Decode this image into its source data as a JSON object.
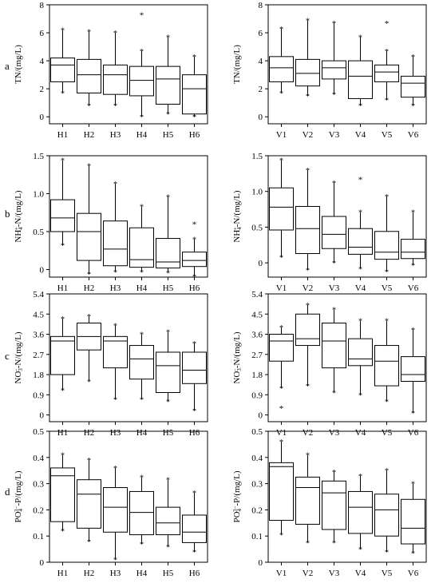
{
  "row_labels": [
    "a",
    "b",
    "c",
    "d"
  ],
  "chart_data": [
    {
      "type": "box",
      "row": 0,
      "col": 0,
      "ylabel": "TN/(mg/L)",
      "ylim": [
        -0.5,
        8
      ],
      "yticks": [
        0,
        2,
        4,
        6,
        8
      ],
      "ytick_labels": [
        "0",
        "2",
        "4",
        "6",
        "8"
      ],
      "categories": [
        "H1",
        "H2",
        "H3",
        "H4",
        "H5",
        "H6"
      ],
      "boxes": [
        {
          "min": 1.7,
          "q1": 2.5,
          "median": 3.7,
          "q3": 4.2,
          "max": 6.2,
          "outliers": []
        },
        {
          "min": 0.8,
          "q1": 1.7,
          "median": 3.0,
          "q3": 4.1,
          "max": 6.1,
          "outliers": []
        },
        {
          "min": 0.8,
          "q1": 1.6,
          "median": 3.0,
          "q3": 3.7,
          "max": 6.0,
          "outliers": []
        },
        {
          "min": 0.0,
          "q1": 1.5,
          "median": 2.6,
          "q3": 3.6,
          "max": 4.7,
          "outliers": [
            7.3
          ]
        },
        {
          "min": 0.2,
          "q1": 0.9,
          "median": 2.7,
          "q3": 3.6,
          "max": 5.7,
          "outliers": []
        },
        {
          "min": 0.0,
          "q1": 0.2,
          "median": 2.0,
          "q3": 3.0,
          "max": 4.3,
          "outliers": []
        }
      ]
    },
    {
      "type": "box",
      "row": 0,
      "col": 1,
      "ylabel": "TN/(mg/L)",
      "ylim": [
        -0.5,
        8
      ],
      "yticks": [
        0,
        2,
        4,
        6,
        8
      ],
      "ytick_labels": [
        "0",
        "2",
        "4",
        "6",
        "8"
      ],
      "categories": [
        "V1",
        "V2",
        "V3",
        "V4",
        "V5",
        "V6"
      ],
      "boxes": [
        {
          "min": 1.7,
          "q1": 2.5,
          "median": 3.5,
          "q3": 4.3,
          "max": 6.3,
          "outliers": []
        },
        {
          "min": 1.5,
          "q1": 2.2,
          "median": 3.1,
          "q3": 4.1,
          "max": 6.9,
          "outliers": []
        },
        {
          "min": 1.6,
          "q1": 2.7,
          "median": 3.5,
          "q3": 4.0,
          "max": 6.7,
          "outliers": []
        },
        {
          "min": 0.8,
          "q1": 1.3,
          "median": 2.9,
          "q3": 4.0,
          "max": 5.7,
          "outliers": []
        },
        {
          "min": 1.2,
          "q1": 2.5,
          "median": 3.2,
          "q3": 3.7,
          "max": 4.7,
          "outliers": [
            6.7
          ]
        },
        {
          "min": 0.8,
          "q1": 1.4,
          "median": 2.4,
          "q3": 2.9,
          "max": 4.3,
          "outliers": []
        }
      ]
    },
    {
      "type": "box",
      "row": 1,
      "col": 0,
      "ylabel": "NH4+-N/(mg/L)",
      "ylim": [
        -0.1,
        1.5
      ],
      "yticks": [
        0,
        0.5,
        1.0,
        1.5
      ],
      "ytick_labels": [
        "0",
        "0.5",
        "1.0",
        "1.5"
      ],
      "categories": [
        "H1",
        "H2",
        "H3",
        "H4",
        "H5",
        "H6"
      ],
      "boxes": [
        {
          "min": 0.32,
          "q1": 0.5,
          "median": 0.68,
          "q3": 0.92,
          "max": 1.44,
          "outliers": []
        },
        {
          "min": -0.06,
          "q1": 0.12,
          "median": 0.5,
          "q3": 0.74,
          "max": 1.37,
          "outliers": []
        },
        {
          "min": -0.03,
          "q1": 0.05,
          "median": 0.27,
          "q3": 0.64,
          "max": 1.13,
          "outliers": []
        },
        {
          "min": -0.03,
          "q1": 0.03,
          "median": 0.13,
          "q3": 0.55,
          "max": 0.83,
          "outliers": []
        },
        {
          "min": -0.04,
          "q1": 0.02,
          "median": 0.1,
          "q3": 0.41,
          "max": 0.96,
          "outliers": []
        },
        {
          "min": -0.09,
          "q1": 0.04,
          "median": 0.12,
          "q3": 0.23,
          "max": 0.4,
          "outliers": [
            0.6
          ]
        }
      ]
    },
    {
      "type": "box",
      "row": 1,
      "col": 1,
      "ylabel": "NH4+-N/(mg/L)",
      "ylim": [
        -0.2,
        1.5
      ],
      "yticks": [
        0,
        0.5,
        1.0,
        1.5
      ],
      "ytick_labels": [
        "0",
        "0.5",
        "1.0",
        "1.5"
      ],
      "categories": [
        "V1",
        "V2",
        "V3",
        "V4",
        "V5",
        "V6"
      ],
      "boxes": [
        {
          "min": 0.08,
          "q1": 0.46,
          "median": 0.78,
          "q3": 1.05,
          "max": 1.44,
          "outliers": []
        },
        {
          "min": -0.1,
          "q1": 0.13,
          "median": 0.48,
          "q3": 0.79,
          "max": 1.3,
          "outliers": []
        },
        {
          "min": 0.0,
          "q1": 0.2,
          "median": 0.4,
          "q3": 0.65,
          "max": 1.12,
          "outliers": []
        },
        {
          "min": -0.08,
          "q1": 0.12,
          "median": 0.22,
          "q3": 0.48,
          "max": 0.71,
          "outliers": [
            1.17
          ]
        },
        {
          "min": -0.12,
          "q1": 0.05,
          "median": 0.15,
          "q3": 0.44,
          "max": 0.93,
          "outliers": []
        },
        {
          "min": -0.03,
          "q1": 0.06,
          "median": 0.15,
          "q3": 0.33,
          "max": 0.71,
          "outliers": []
        }
      ]
    },
    {
      "type": "box",
      "row": 2,
      "col": 0,
      "ylabel": "NO3−-N/(mg/L)",
      "ylim": [
        -0.3,
        5.4
      ],
      "yticks": [
        0,
        0.9,
        1.8,
        2.7,
        3.6,
        4.5,
        5.4
      ],
      "ytick_labels": [
        "0",
        "0.9",
        "1.8",
        "2.7",
        "3.6",
        "4.5",
        "5.4"
      ],
      "categories": [
        "H1",
        "H2",
        "H3",
        "H4",
        "H5",
        "H6"
      ],
      "boxes": [
        {
          "min": 1.1,
          "q1": 1.8,
          "median": 3.3,
          "q3": 3.5,
          "max": 4.3,
          "outliers": []
        },
        {
          "min": 1.5,
          "q1": 2.9,
          "median": 3.5,
          "q3": 4.1,
          "max": 4.4,
          "outliers": []
        },
        {
          "min": 0.7,
          "q1": 2.1,
          "median": 3.3,
          "q3": 3.5,
          "max": 4.0,
          "outliers": []
        },
        {
          "min": 0.7,
          "q1": 1.6,
          "median": 2.5,
          "q3": 3.1,
          "max": 3.6,
          "outliers": []
        },
        {
          "min": 0.6,
          "q1": 1.0,
          "median": 2.2,
          "q3": 2.8,
          "max": 3.7,
          "outliers": []
        },
        {
          "min": 0.2,
          "q1": 1.4,
          "median": 2.0,
          "q3": 2.8,
          "max": 3.2,
          "outliers": []
        }
      ]
    },
    {
      "type": "box",
      "row": 2,
      "col": 1,
      "ylabel": "NO3−-N/(mg/L)",
      "ylim": [
        -0.3,
        5.4
      ],
      "yticks": [
        0,
        0.9,
        1.8,
        2.7,
        3.6,
        4.5,
        5.4
      ],
      "ytick_labels": [
        "0",
        "0.9",
        "1.8",
        "2.7",
        "3.6",
        "4.5",
        "5.4"
      ],
      "categories": [
        "V1",
        "V2",
        "V3",
        "V4",
        "V5",
        "V6"
      ],
      "boxes": [
        {
          "min": 1.2,
          "q1": 2.4,
          "median": 3.3,
          "q3": 3.6,
          "max": 3.9,
          "outliers": [
            0.3
          ]
        },
        {
          "min": 1.3,
          "q1": 3.1,
          "median": 3.4,
          "q3": 4.5,
          "max": 4.9,
          "outliers": []
        },
        {
          "min": 1.0,
          "q1": 2.1,
          "median": 3.3,
          "q3": 4.1,
          "max": 4.7,
          "outliers": []
        },
        {
          "min": 0.9,
          "q1": 2.2,
          "median": 2.5,
          "q3": 3.4,
          "max": 4.2,
          "outliers": []
        },
        {
          "min": 0.6,
          "q1": 1.3,
          "median": 2.4,
          "q3": 3.1,
          "max": 4.2,
          "outliers": []
        },
        {
          "min": 0.1,
          "q1": 1.5,
          "median": 1.8,
          "q3": 2.6,
          "max": 3.8,
          "outliers": []
        }
      ]
    },
    {
      "type": "box",
      "row": 3,
      "col": 0,
      "ylabel": "PO43−-P/(mg/L)",
      "ylim": [
        0,
        0.5
      ],
      "yticks": [
        0,
        0.1,
        0.2,
        0.3,
        0.4,
        0.5
      ],
      "ytick_labels": [
        "0",
        "0.1",
        "0.2",
        "0.3",
        "0.4",
        "0.5"
      ],
      "categories": [
        "H1",
        "H2",
        "H3",
        "H4",
        "H5",
        "H6"
      ],
      "boxes": [
        {
          "min": 0.12,
          "q1": 0.155,
          "median": 0.33,
          "q3": 0.36,
          "max": 0.41,
          "outliers": []
        },
        {
          "min": 0.08,
          "q1": 0.13,
          "median": 0.26,
          "q3": 0.315,
          "max": 0.39,
          "outliers": []
        },
        {
          "min": 0.01,
          "q1": 0.115,
          "median": 0.21,
          "q3": 0.285,
          "max": 0.36,
          "outliers": []
        },
        {
          "min": 0.07,
          "q1": 0.105,
          "median": 0.19,
          "q3": 0.27,
          "max": 0.325,
          "outliers": []
        },
        {
          "min": 0.06,
          "q1": 0.105,
          "median": 0.15,
          "q3": 0.21,
          "max": 0.315,
          "outliers": []
        },
        {
          "min": 0.04,
          "q1": 0.075,
          "median": 0.115,
          "q3": 0.18,
          "max": 0.265,
          "outliers": []
        }
      ]
    },
    {
      "type": "box",
      "row": 3,
      "col": 1,
      "ylabel": "PO43−-P/(mg/L)",
      "ylim": [
        0,
        0.5
      ],
      "yticks": [
        0,
        0.1,
        0.2,
        0.3,
        0.4,
        0.5
      ],
      "ytick_labels": [
        "0",
        "0.1",
        "0.2",
        "0.3",
        "0.4",
        "0.5"
      ],
      "categories": [
        "V1",
        "V2",
        "V3",
        "V4",
        "V5",
        "V6"
      ],
      "boxes": [
        {
          "min": 0.105,
          "q1": 0.16,
          "median": 0.365,
          "q3": 0.38,
          "max": 0.46,
          "outliers": []
        },
        {
          "min": 0.075,
          "q1": 0.145,
          "median": 0.285,
          "q3": 0.325,
          "max": 0.41,
          "outliers": []
        },
        {
          "min": 0.075,
          "q1": 0.125,
          "median": 0.265,
          "q3": 0.31,
          "max": 0.345,
          "outliers": []
        },
        {
          "min": 0.05,
          "q1": 0.11,
          "median": 0.21,
          "q3": 0.27,
          "max": 0.33,
          "outliers": []
        },
        {
          "min": 0.04,
          "q1": 0.1,
          "median": 0.2,
          "q3": 0.26,
          "max": 0.35,
          "outliers": []
        },
        {
          "min": 0.035,
          "q1": 0.07,
          "median": 0.13,
          "q3": 0.24,
          "max": 0.3,
          "outliers": []
        }
      ]
    }
  ]
}
